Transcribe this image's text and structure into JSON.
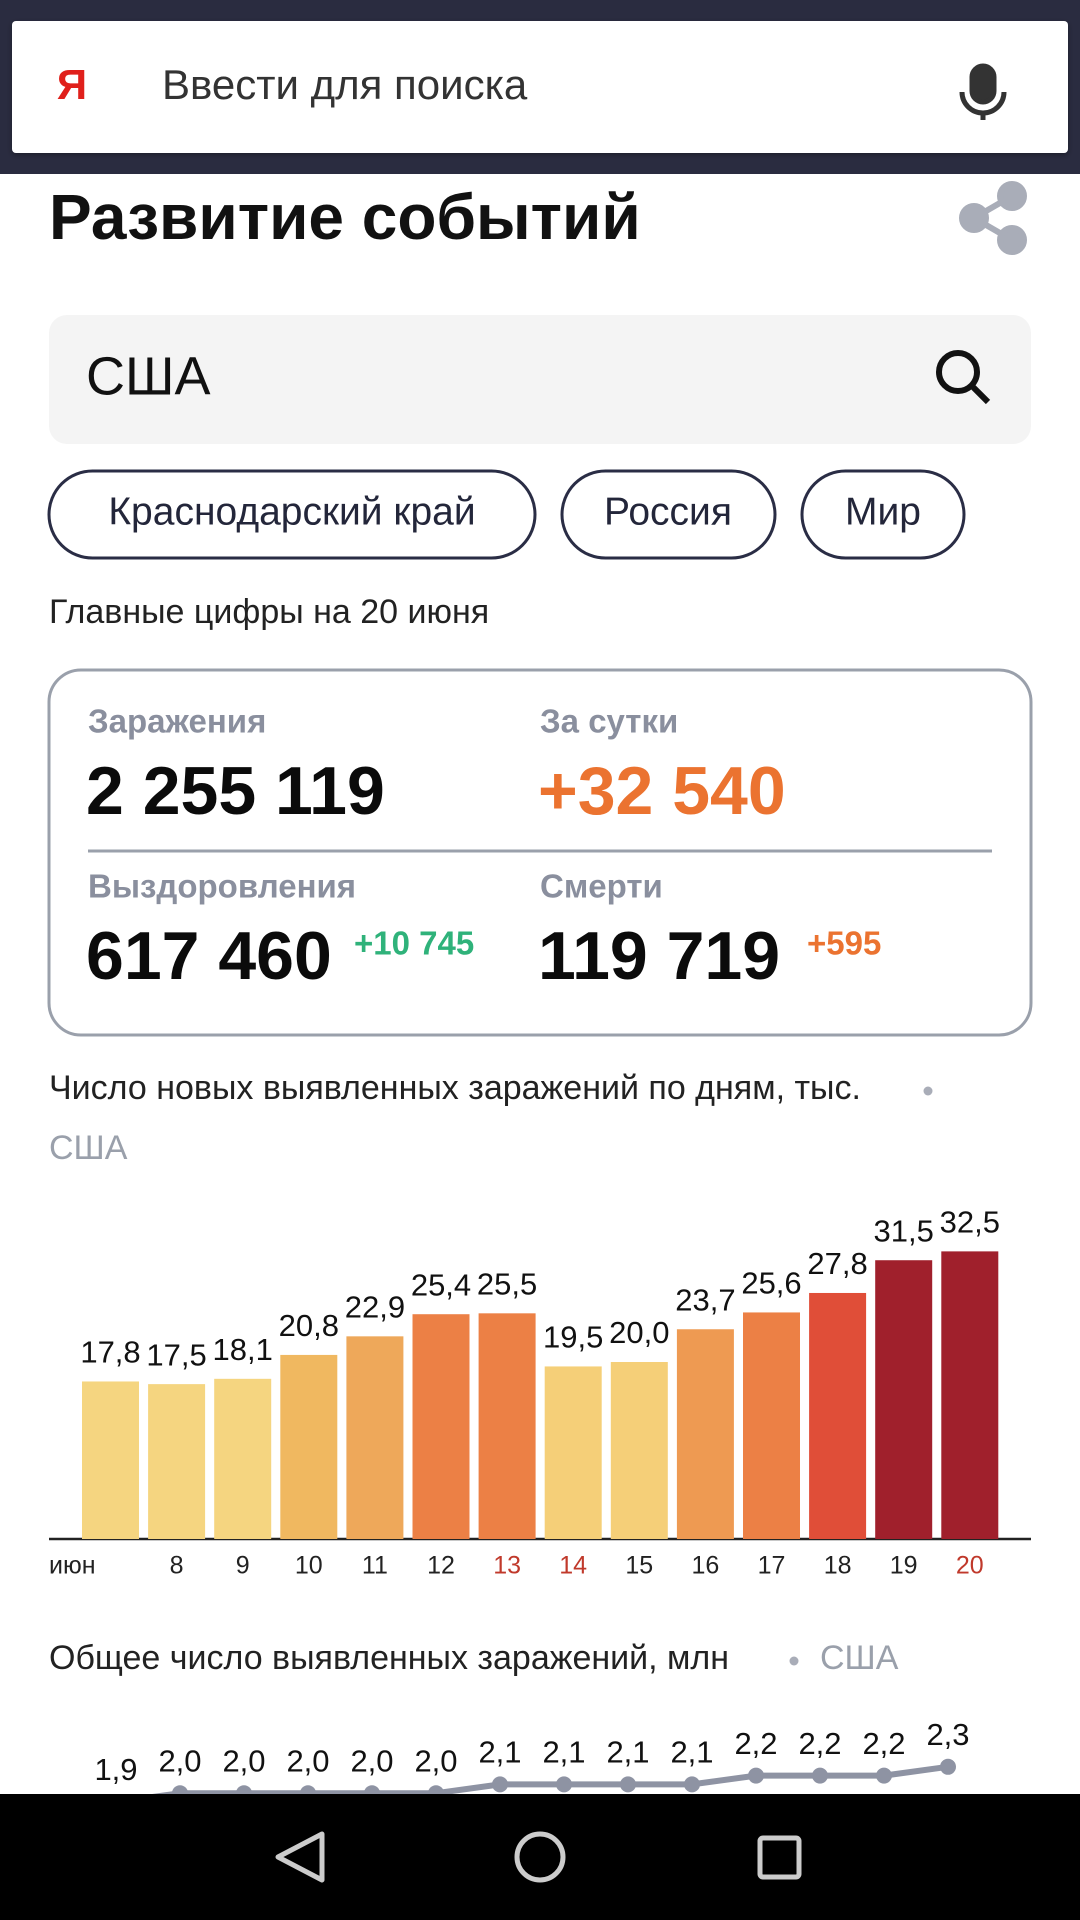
{
  "search_bar": {
    "logo": "Я",
    "placeholder": "Ввести для поиска"
  },
  "header": {
    "title": "Развитие событий"
  },
  "search": {
    "query": "США"
  },
  "chips": [
    "Краснодарский край",
    "Россия",
    "Мир"
  ],
  "summary": {
    "title": "Главные цифры на 20 июня",
    "stats": [
      {
        "label": "Заражения",
        "value": "2 255 119"
      },
      {
        "label": "За сутки",
        "value": "+32 540"
      },
      {
        "label": "Выздоровления",
        "value": "617 460",
        "delta": "+10 745"
      },
      {
        "label": "Смерти",
        "value": "119 719",
        "delta": "+595"
      }
    ]
  },
  "chart_data": [
    {
      "type": "bar",
      "title": "Число новых выявленных заражений по дням, тыс.",
      "subtitle": "США",
      "categories": [
        "июн",
        "8",
        "9",
        "10",
        "11",
        "12",
        "13",
        "14",
        "15",
        "16",
        "17",
        "18",
        "19",
        "20"
      ],
      "values": [
        17.8,
        17.5,
        18.1,
        20.8,
        22.9,
        25.4,
        25.5,
        19.5,
        20.0,
        23.7,
        25.6,
        27.8,
        31.5,
        32.5
      ],
      "value_labels": [
        "17,8",
        "17,5",
        "18,1",
        "20,8",
        "22,9",
        "25,4",
        "25,5",
        "19,5",
        "20,0",
        "23,7",
        "25,6",
        "27,8",
        "31,5",
        "32,5"
      ],
      "colors": [
        "#f5d580",
        "#f5d580",
        "#f5d580",
        "#f0b860",
        "#eea85a",
        "#ec8045",
        "#ec8045",
        "#f5cf78",
        "#f5cf78",
        "#ee9a52",
        "#ec8045",
        "#e04e38",
        "#a0202c",
        "#a0202c"
      ],
      "category_colors": [
        "#222222",
        "#222222",
        "#222222",
        "#222222",
        "#222222",
        "#222222",
        "#c0392b",
        "#c0392b",
        "#222222",
        "#222222",
        "#222222",
        "#222222",
        "#222222",
        "#c0392b"
      ]
    },
    {
      "type": "line",
      "title": "Общее число выявленных заражений, млн",
      "subtitle": "США",
      "values": [
        1.9,
        2.0,
        2.0,
        2.0,
        2.0,
        2.0,
        2.1,
        2.1,
        2.1,
        2.1,
        2.2,
        2.2,
        2.2,
        2.3
      ],
      "value_labels": [
        "1,9",
        "2,0",
        "2,0",
        "2,0",
        "2,0",
        "2,0",
        "2,1",
        "2,1",
        "2,1",
        "2,1",
        "2,2",
        "2,2",
        "2,2",
        "2,3"
      ],
      "color": "#8e93a3"
    }
  ]
}
